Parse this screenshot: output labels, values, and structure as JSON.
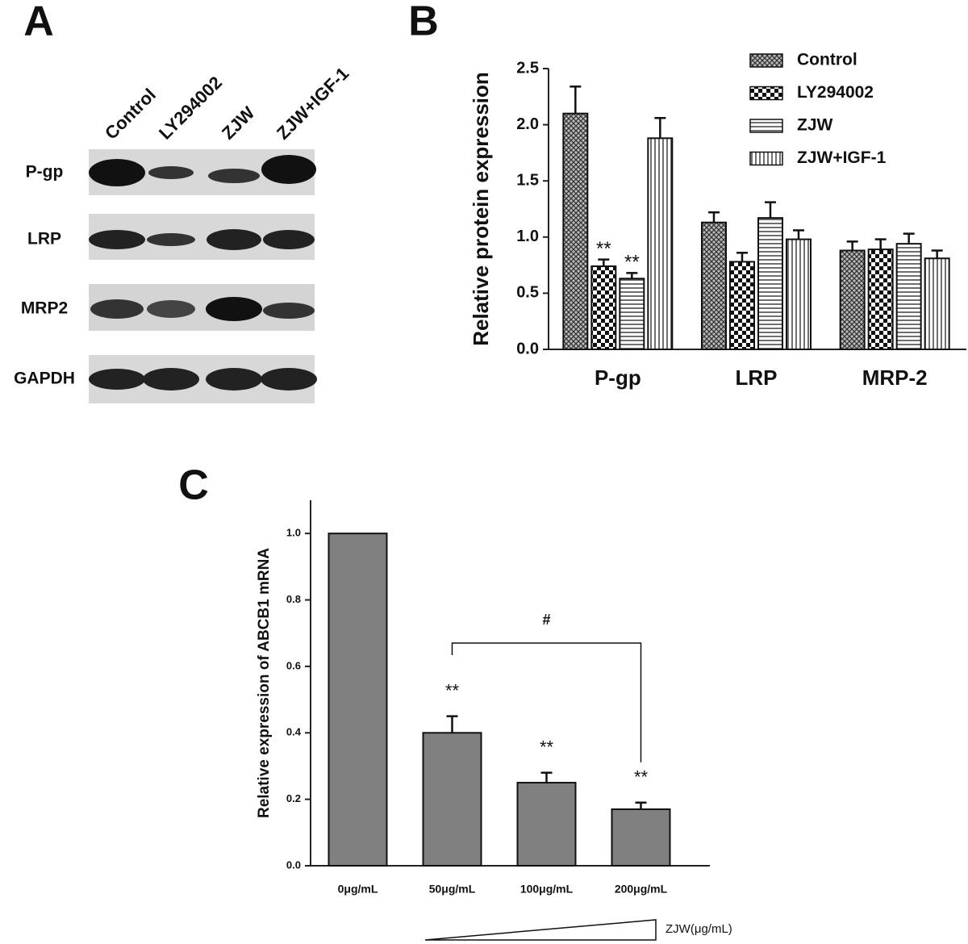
{
  "panel_a": {
    "letter": "A",
    "lanes": [
      "Control",
      "LY294002",
      "ZJW",
      "ZJW+IGF-1"
    ],
    "rows": [
      "P-gp",
      "LRP",
      "MRP2",
      "GAPDH"
    ]
  },
  "chart_data": [
    {
      "type": "bar",
      "letter": "B",
      "ylabel": "Relative protein expression",
      "categories": [
        "P-gp",
        "LRP",
        "MRP-2"
      ],
      "series": [
        {
          "name": "Control",
          "values": [
            2.1,
            1.13,
            0.88
          ],
          "errors": [
            0.24,
            0.09,
            0.08
          ],
          "marks": [
            null,
            null,
            null
          ]
        },
        {
          "name": "LY294002",
          "values": [
            0.74,
            0.78,
            0.89
          ],
          "errors": [
            0.06,
            0.08,
            0.09
          ],
          "marks": [
            "**",
            null,
            null
          ]
        },
        {
          "name": "ZJW",
          "values": [
            0.63,
            1.17,
            0.94
          ],
          "errors": [
            0.05,
            0.14,
            0.09
          ],
          "marks": [
            "**",
            null,
            null
          ]
        },
        {
          "name": "ZJW+IGF-1",
          "values": [
            1.88,
            0.98,
            0.81
          ],
          "errors": [
            0.18,
            0.08,
            0.07
          ],
          "marks": [
            null,
            null,
            null
          ]
        }
      ],
      "ylim": [
        0,
        2.5
      ],
      "yticks": [
        {
          "value": 0,
          "label": "0.0"
        },
        {
          "value": 0.5,
          "label": "0.5"
        },
        {
          "value": 1,
          "label": "1.0"
        },
        {
          "value": 1.5,
          "label": "1.5"
        },
        {
          "value": 2,
          "label": "2.0"
        },
        {
          "value": 2.5,
          "label": "2.5"
        }
      ]
    },
    {
      "type": "bar",
      "letter": "C",
      "ylabel": "Relative expression of ABCB1 mRNA",
      "categories": [
        "0μg/mL",
        "50μg/mL",
        "100μg/mL",
        "200μg/mL"
      ],
      "series": [
        {
          "color": "#808080",
          "values": [
            1.0,
            0.4,
            0.25,
            0.17
          ],
          "errors": [
            null,
            0.05,
            0.03,
            0.02
          ],
          "marks": [
            null,
            "**",
            "**",
            "**"
          ]
        }
      ],
      "ylim": [
        0,
        1.1
      ],
      "yticks": [
        {
          "value": 0,
          "label": "0.0"
        },
        {
          "value": 0.2,
          "label": "0.2"
        },
        {
          "value": 0.4,
          "label": "0.4"
        },
        {
          "value": 0.6,
          "label": "0.6"
        },
        {
          "value": 0.8,
          "label": "0.8"
        },
        {
          "value": 1,
          "label": "1.0"
        }
      ],
      "bracket_label": "#",
      "gradient_label": "ZJW(μg/mL)"
    }
  ]
}
